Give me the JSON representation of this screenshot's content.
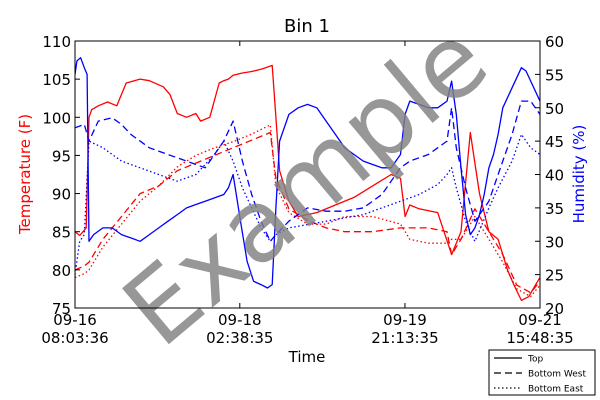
{
  "chart_data": {
    "type": "line",
    "title": "Bin 1",
    "xlabel": "Time",
    "y_left_label": "Temperature (F)",
    "y_right_label": "Humidity (%)",
    "y_left_lim": [
      75,
      110
    ],
    "y_right_lim": [
      20,
      60
    ],
    "y_left_ticks": [
      75,
      80,
      85,
      90,
      95,
      100,
      105,
      110
    ],
    "y_right_ticks": [
      20,
      25,
      30,
      35,
      40,
      45,
      50,
      55,
      60
    ],
    "x_range_days": [
      0,
      5.0
    ],
    "x_ticks": [
      {
        "x": 0.0,
        "line1": "09-16",
        "line2": "08:03:36"
      },
      {
        "x": 1.772,
        "line1": "09-18",
        "line2": "02:38:35"
      },
      {
        "x": 3.548,
        "line1": "09-19",
        "line2": "21:13:35"
      },
      {
        "x": 5.0,
        "line1": "09-21",
        "line2": "15:48:35"
      }
    ],
    "colors": {
      "temperature": "#ff0000",
      "humidity": "#0000ff",
      "watermark": "#808080"
    },
    "watermark": "Example",
    "grid": false,
    "legend": {
      "placement": "bottom-right, outside plot",
      "entries": [
        {
          "label": "Top",
          "style": "solid"
        },
        {
          "label": "Bottom West",
          "style": "dashed"
        },
        {
          "label": "Bottom East",
          "style": "dotted"
        }
      ]
    },
    "series": [
      {
        "name": "Top",
        "quantity": "temperature",
        "axis": "left",
        "style": "solid",
        "x": [
          0,
          0.05,
          0.12,
          0.15,
          0.18,
          0.25,
          0.35,
          0.45,
          0.55,
          0.7,
          0.8,
          0.95,
          1.02,
          1.1,
          1.2,
          1.3,
          1.35,
          1.45,
          1.55,
          1.6,
          1.65,
          1.7,
          1.8,
          1.9,
          2.0,
          2.05,
          2.12,
          2.16,
          2.2,
          2.3,
          2.4,
          2.6,
          2.8,
          3.0,
          3.2,
          3.4,
          3.5,
          3.55,
          3.6,
          3.7,
          3.9,
          4.05,
          4.15,
          4.25,
          4.35,
          4.45,
          4.55,
          4.65,
          4.72,
          4.8,
          4.88,
          4.95,
          5.0
        ],
        "y": [
          85,
          84.5,
          85.5,
          100,
          101,
          101.5,
          102,
          101.5,
          104.5,
          105,
          104.8,
          104,
          103,
          100.5,
          100,
          100.5,
          99.5,
          100,
          104.5,
          104.8,
          105,
          105.5,
          105.8,
          106,
          106.3,
          106.5,
          106.8,
          100,
          93,
          89,
          87,
          87.5,
          88.5,
          89.5,
          91,
          92.5,
          92,
          87,
          88.5,
          88,
          87.5,
          82,
          85,
          98,
          90,
          85,
          84,
          80,
          78,
          76,
          76.5,
          78,
          79
        ]
      },
      {
        "name": "Bottom West",
        "quantity": "temperature",
        "axis": "left",
        "style": "dashed",
        "x": [
          0,
          0.1,
          0.15,
          0.3,
          0.5,
          0.7,
          0.9,
          1.1,
          1.3,
          1.5,
          1.7,
          1.9,
          2.1,
          2.16,
          2.3,
          2.5,
          2.7,
          2.9,
          3.2,
          3.5,
          3.6,
          3.8,
          4.0,
          4.05,
          4.15,
          4.3,
          4.45,
          4.6,
          4.75,
          4.9,
          5.0
        ],
        "y": [
          80,
          80.5,
          81,
          84,
          87,
          90,
          91,
          93,
          94,
          95,
          96,
          97,
          98,
          92,
          88,
          86.5,
          85.5,
          85,
          85,
          85.5,
          85.5,
          85.5,
          85,
          82,
          84,
          88,
          85,
          82,
          78,
          77,
          78.5
        ]
      },
      {
        "name": "Bottom East",
        "quantity": "temperature",
        "axis": "left",
        "style": "dotted",
        "x": [
          0,
          0.1,
          0.15,
          0.3,
          0.5,
          0.7,
          0.9,
          1.1,
          1.3,
          1.5,
          1.7,
          1.9,
          2.1,
          2.16,
          2.3,
          2.5,
          2.7,
          2.9,
          3.2,
          3.5,
          3.6,
          3.8,
          4.0,
          4.05,
          4.15,
          4.3,
          4.45,
          4.6,
          4.75,
          4.9,
          5.0
        ],
        "y": [
          79,
          79.5,
          80,
          83,
          86,
          89,
          91,
          93.5,
          95,
          96,
          96.8,
          97.8,
          99,
          91,
          87.5,
          86,
          86,
          87,
          87,
          86,
          84,
          83.5,
          83.5,
          84,
          84,
          87,
          84,
          81,
          77.5,
          76.5,
          78
        ]
      },
      {
        "name": "Top",
        "quantity": "humidity",
        "axis": "right",
        "style": "solid",
        "x": [
          0,
          0.02,
          0.06,
          0.1,
          0.13,
          0.15,
          0.2,
          0.3,
          0.4,
          0.5,
          0.6,
          0.7,
          0.8,
          0.9,
          1.0,
          1.1,
          1.2,
          1.3,
          1.4,
          1.5,
          1.6,
          1.65,
          1.7,
          1.78,
          1.85,
          1.92,
          2.0,
          2.07,
          2.12,
          2.16,
          2.2,
          2.3,
          2.4,
          2.5,
          2.6,
          2.7,
          2.8,
          2.9,
          3.0,
          3.1,
          3.2,
          3.3,
          3.4,
          3.5,
          3.55,
          3.6,
          3.7,
          3.8,
          3.9,
          4.0,
          4.05,
          4.1,
          4.15,
          4.2,
          4.25,
          4.3,
          4.35,
          4.4,
          4.45,
          4.5,
          4.55,
          4.6,
          4.7,
          4.8,
          4.85,
          4.9,
          5.0
        ],
        "y": [
          55,
          57,
          57.5,
          56,
          55,
          30,
          31,
          32,
          32,
          31,
          30.5,
          30,
          31,
          32,
          33,
          34,
          35,
          35.5,
          36,
          36.5,
          37,
          38,
          40,
          33,
          27,
          24,
          23.5,
          23,
          23.5,
          35,
          45,
          49,
          50,
          50.5,
          50,
          48,
          46,
          44,
          43,
          42,
          41.5,
          41,
          41,
          43,
          49,
          51,
          50.5,
          50,
          50,
          51,
          54,
          49,
          41,
          34,
          31,
          32,
          34,
          37,
          41,
          43,
          46,
          50,
          53,
          56,
          55.5,
          54,
          51
        ]
      },
      {
        "name": "Bottom West",
        "quantity": "humidity",
        "axis": "right",
        "style": "dashed",
        "x": [
          0,
          0.1,
          0.15,
          0.25,
          0.4,
          0.5,
          0.6,
          0.8,
          1.0,
          1.2,
          1.4,
          1.6,
          1.7,
          1.8,
          1.9,
          2.0,
          2.1,
          2.16,
          2.3,
          2.5,
          2.7,
          2.9,
          3.1,
          3.3,
          3.5,
          3.6,
          3.8,
          3.9,
          4.0,
          4.05,
          4.1,
          4.2,
          4.3,
          4.45,
          4.55,
          4.7,
          4.8,
          4.9,
          5.0
        ],
        "y": [
          47,
          47.5,
          45,
          48,
          48.5,
          47.5,
          46,
          44,
          43,
          42,
          41,
          45,
          48,
          42,
          37,
          33,
          30,
          31,
          33,
          35,
          34.5,
          34.5,
          35,
          37,
          41,
          42,
          43,
          44,
          45,
          50,
          44,
          38,
          33,
          36,
          40,
          46,
          51,
          51,
          49
        ]
      },
      {
        "name": "Bottom East",
        "quantity": "humidity",
        "axis": "right",
        "style": "dotted",
        "x": [
          0,
          0.05,
          0.1,
          0.15,
          0.3,
          0.5,
          0.7,
          0.9,
          1.1,
          1.3,
          1.5,
          1.6,
          1.7,
          1.8,
          1.9,
          2.0,
          2.1,
          2.16,
          2.3,
          2.5,
          2.7,
          2.9,
          3.1,
          3.3,
          3.5,
          3.7,
          3.9,
          4.0,
          4.05,
          4.1,
          4.2,
          4.3,
          4.45,
          4.55,
          4.7,
          4.8,
          4.9,
          5.0
        ],
        "y": [
          25,
          30,
          31,
          45,
          44,
          42,
          41,
          40,
          39,
          40,
          43,
          45,
          42,
          38,
          35,
          32,
          30,
          31,
          32,
          32.5,
          33,
          33.5,
          34,
          35,
          36,
          37,
          38.5,
          40,
          41,
          38,
          33,
          30,
          35,
          38,
          42,
          46,
          44,
          43
        ]
      }
    ]
  }
}
